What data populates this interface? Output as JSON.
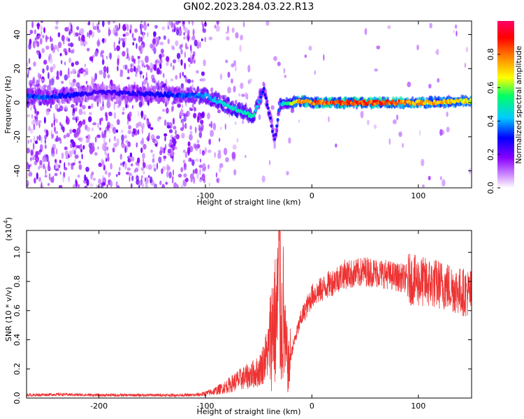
{
  "title": "GN02.2023.284.03.22.R13",
  "top_panel": {
    "xlabel": "Height of straight line (km)",
    "ylabel": "Frequency (Hz)",
    "xticks": [
      "-200",
      "-100",
      "0",
      "100"
    ],
    "yticks": [
      "40",
      "20",
      "0",
      "-20",
      "-40"
    ],
    "colorbar_label": "Normalized spectral amplitude",
    "colorbar_ticks": [
      "0.0",
      "0.2",
      "0.4",
      "0.6",
      "0.8"
    ]
  },
  "bottom_panel": {
    "xlabel": "Height of straight line (km)",
    "ylabel": "SNR (10 * v/v)",
    "multiplier": "(x10",
    "multiplier_exp": "4",
    "multiplier_close": ")",
    "xticks": [
      "-200",
      "-100",
      "0",
      "100"
    ],
    "yticks": [
      "0.0",
      "0.2",
      "0.4",
      "0.6",
      "0.8",
      "1.0"
    ]
  },
  "colors": {
    "line": "#ee3333",
    "cmap": [
      "#ffffff",
      "#8800ff",
      "#0000ff",
      "#00ccff",
      "#00ff66",
      "#ffff00",
      "#ff8800",
      "#ff0000",
      "#ff0066"
    ]
  },
  "chart_data": [
    {
      "type": "heatmap",
      "title": "GN02.2023.284.03.22.R13",
      "xlabel": "Height of straight line (km)",
      "ylabel": "Frequency (Hz)",
      "xlim": [
        -268,
        150
      ],
      "ylim": [
        -50,
        48
      ],
      "colorbar": {
        "label": "Normalized spectral amplitude",
        "range": [
          0,
          1
        ]
      },
      "ridge": [
        {
          "x": -268,
          "y": 4,
          "amp": 0.35
        },
        {
          "x": -250,
          "y": 3,
          "amp": 0.35
        },
        {
          "x": -200,
          "y": 6,
          "amp": 0.25
        },
        {
          "x": -150,
          "y": 5,
          "amp": 0.3
        },
        {
          "x": -100,
          "y": 4,
          "amp": 0.4
        },
        {
          "x": -85,
          "y": 0,
          "amp": 0.45
        },
        {
          "x": -70,
          "y": -4,
          "amp": 0.5
        },
        {
          "x": -55,
          "y": -8,
          "amp": 0.5
        },
        {
          "x": -45,
          "y": 8,
          "amp": 0.3
        },
        {
          "x": -35,
          "y": -22,
          "amp": 0.25
        },
        {
          "x": -30,
          "y": -1,
          "amp": 0.4
        },
        {
          "x": -10,
          "y": 1,
          "amp": 0.8
        },
        {
          "x": 0,
          "y": 0,
          "amp": 0.85
        },
        {
          "x": 50,
          "y": 0,
          "amp": 0.9
        },
        {
          "x": 100,
          "y": 0,
          "amp": 0.8
        },
        {
          "x": 150,
          "y": 1,
          "amp": 0.7
        }
      ]
    },
    {
      "type": "line",
      "xlabel": "Height of straight line (km)",
      "ylabel": "SNR (10 * v/v)",
      "y_scale_note": "x10^4",
      "xlim": [
        -268,
        150
      ],
      "ylim": [
        0,
        1.15
      ],
      "series": [
        {
          "x": [
            -268,
            -240,
            -200,
            -150,
            -110,
            -100,
            -90,
            -80,
            -70,
            -60,
            -50,
            -45,
            -40,
            -36,
            -33,
            -31,
            -29,
            -27,
            -25,
            -22,
            -18,
            -14,
            -10,
            -5,
            0,
            10,
            20,
            30,
            40,
            50,
            60,
            70,
            80,
            90,
            100,
            110,
            120,
            130,
            140,
            150
          ],
          "y": [
            0.02,
            0.025,
            0.02,
            0.02,
            0.02,
            0.03,
            0.05,
            0.08,
            0.12,
            0.15,
            0.18,
            0.25,
            0.35,
            0.55,
            0.5,
            0.9,
            0.45,
            0.6,
            0.35,
            0.2,
            0.35,
            0.45,
            0.55,
            0.62,
            0.7,
            0.75,
            0.8,
            0.85,
            0.85,
            0.87,
            0.86,
            0.85,
            0.83,
            0.82,
            0.8,
            0.79,
            0.78,
            0.76,
            0.73,
            0.72
          ]
        }
      ]
    }
  ]
}
